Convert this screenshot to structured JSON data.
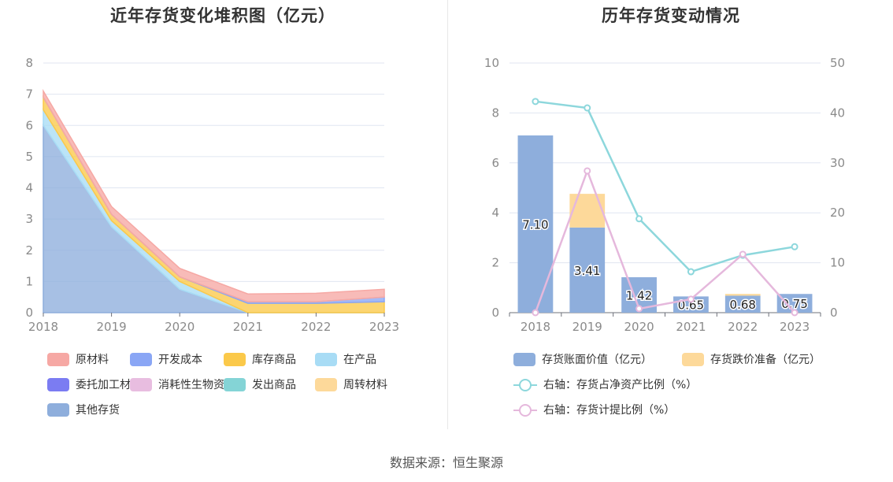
{
  "source": "数据来源：恒生聚源",
  "chart_data": [
    {
      "type": "area",
      "stacked": true,
      "title": "近年存货变化堆积图（亿元）",
      "x": [
        "2018",
        "2019",
        "2020",
        "2021",
        "2022",
        "2023"
      ],
      "ylim": [
        0,
        8
      ],
      "yticks": [
        "0",
        "1",
        "2",
        "3",
        "4",
        "5",
        "6",
        "7",
        "8"
      ],
      "grid": true,
      "legend_position": "bottom",
      "series": [
        {
          "name": "其他存货",
          "color": "#8eaedc",
          "values": [
            6.0,
            2.75,
            0.75,
            0.0,
            0.0,
            0.0
          ]
        },
        {
          "name": "在产品",
          "color": "#a8dcf5",
          "values": [
            0.5,
            0.2,
            0.25,
            0.0,
            0.0,
            0.0
          ]
        },
        {
          "name": "库存商品",
          "color": "#fbc94a",
          "values": [
            0.4,
            0.2,
            0.15,
            0.3,
            0.3,
            0.35
          ]
        },
        {
          "name": "开发成本",
          "color": "#8aa6f5",
          "values": [
            0.0,
            0.0,
            0.0,
            0.05,
            0.05,
            0.15
          ]
        },
        {
          "name": "原材料",
          "color": "#f6a8a4",
          "values": [
            0.2,
            0.25,
            0.27,
            0.25,
            0.27,
            0.25
          ]
        }
      ],
      "legend": [
        {
          "name": "原材料",
          "color": "#f6a8a4"
        },
        {
          "name": "开发成本",
          "color": "#8aa6f5"
        },
        {
          "name": "库存商品",
          "color": "#fbc94a"
        },
        {
          "name": "在产品",
          "color": "#a8dcf5"
        },
        {
          "name": "委托加工材料",
          "color": "#7b7cf2"
        },
        {
          "name": "消耗性生物资产",
          "color": "#e8bde0"
        },
        {
          "name": "发出商品",
          "color": "#84d4d6"
        },
        {
          "name": "周转材料",
          "color": "#fdd99a"
        },
        {
          "name": "其他存货",
          "color": "#8eaedc"
        }
      ]
    },
    {
      "type": "bar",
      "stacked": true,
      "title": "历年存货变动情况",
      "categories": [
        "2018",
        "2019",
        "2020",
        "2021",
        "2022",
        "2023"
      ],
      "ylim": [
        0,
        10
      ],
      "yticks": [
        "0",
        "2",
        "4",
        "6",
        "8",
        "10"
      ],
      "y2lim": [
        0,
        50
      ],
      "y2ticks": [
        "0",
        "10",
        "20",
        "30",
        "40",
        "50"
      ],
      "grid": true,
      "legend_position": "bottom",
      "series": [
        {
          "name": "存货账面价值（亿元）",
          "color": "#8eaedc",
          "values": [
            7.1,
            3.41,
            1.42,
            0.65,
            0.68,
            0.75
          ],
          "labels": [
            "7.10",
            "3.41",
            "1.42",
            "0.65",
            "0.68",
            "0.75"
          ]
        },
        {
          "name": "存货跌价准备（亿元）",
          "color": "#fdd99a",
          "values": [
            0.0,
            1.35,
            0.0,
            0.0,
            0.07,
            0.0
          ]
        },
        {
          "name": "右轴：存货占净资产比例（%）",
          "type": "line",
          "axis": "right",
          "color": "#8dd7dc",
          "values": [
            42.3,
            41.0,
            18.8,
            8.2,
            11.5,
            13.2
          ]
        },
        {
          "name": "右轴：存货计提比例（%）",
          "type": "line",
          "axis": "right",
          "color": "#e5b8dc",
          "values": [
            0.0,
            28.4,
            0.8,
            2.7,
            11.7,
            0.0
          ]
        }
      ]
    }
  ]
}
